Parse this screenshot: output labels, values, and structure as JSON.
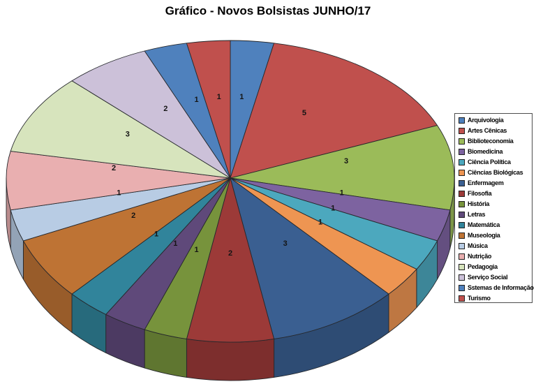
{
  "chart_data": {
    "type": "pie",
    "title": "Gráfico - Novos Bolsistas JUNHO/17",
    "effect": "3d",
    "total": 32,
    "start_angle_deg": 0,
    "direction": "clockwise",
    "legend_position": "right",
    "label_type": "value",
    "series": [
      {
        "label": "Arquivologia",
        "value": 1,
        "color": "#4F81BD"
      },
      {
        "label": "Artes Cênicas",
        "value": 5,
        "color": "#C0504D"
      },
      {
        "label": "Biblioteconomia",
        "value": 3,
        "color": "#9BBB59"
      },
      {
        "label": "Biomedicina",
        "value": 1,
        "color": "#7D63A0"
      },
      {
        "label": "Ciência Política",
        "value": 1,
        "color": "#4CA8BE"
      },
      {
        "label": "Ciências Biológicas",
        "value": 1,
        "color": "#EE9552"
      },
      {
        "label": "Enfermagem",
        "value": 3,
        "color": "#3A5F91"
      },
      {
        "label": "Filosofia",
        "value": 2,
        "color": "#9C3A38"
      },
      {
        "label": "História",
        "value": 1,
        "color": "#77933C"
      },
      {
        "label": "Letras",
        "value": 1,
        "color": "#5F497A"
      },
      {
        "label": "Matemática",
        "value": 1,
        "color": "#31849B"
      },
      {
        "label": "Museologia",
        "value": 2,
        "color": "#BE7334"
      },
      {
        "label": "Música",
        "value": 1,
        "color": "#B8CCE4"
      },
      {
        "label": "Nutrição",
        "value": 2,
        "color": "#E9AFB0"
      },
      {
        "label": "Pedagogia",
        "value": 3,
        "color": "#D7E4BD"
      },
      {
        "label": "Serviço Social",
        "value": 2,
        "color": "#CCC1D9"
      },
      {
        "label": "Sstemas de Informação",
        "value": 1,
        "color": "#4F81BD"
      },
      {
        "label": "Turismo",
        "value": 1,
        "color": "#C0504D"
      }
    ]
  }
}
